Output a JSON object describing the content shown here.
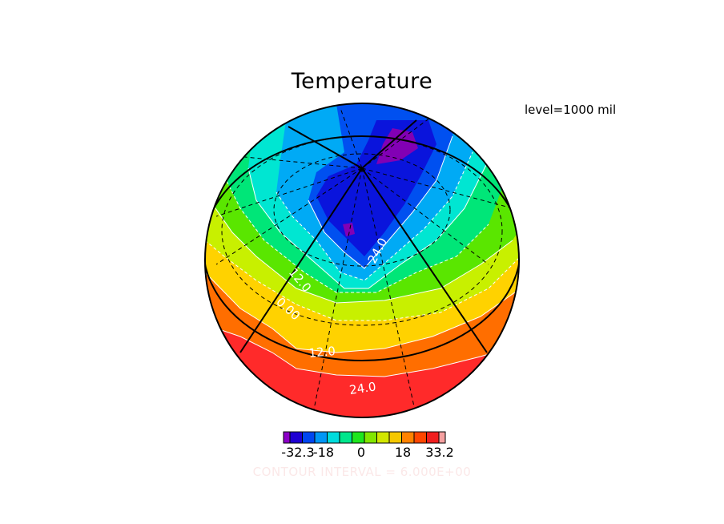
{
  "title": "Temperature",
  "level_label": "level=1000 mil",
  "contour_interval_label": "CONTOUR INTERVAL = 6.000E+00",
  "contour_labels": [
    "24.0",
    "12.0",
    "0.00",
    "12.0",
    "24.0"
  ],
  "colorbar": {
    "colors": [
      "#8c00c8",
      "#1e00d2",
      "#0046f0",
      "#0096f5",
      "#00dcdc",
      "#00e68c",
      "#1ee61e",
      "#82e600",
      "#d2e600",
      "#f5c800",
      "#ff8200",
      "#ff4600",
      "#f01e1e",
      "#f5a0a0"
    ],
    "tick_labels": [
      "-32.3",
      "-18",
      "0",
      "18",
      "33.2"
    ]
  },
  "colors": {
    "coast_band": "#ff2a2a",
    "orange_band": "#ff6e00",
    "yellow_band": "#ffd200",
    "lime_band": "#c8f000",
    "green_band": "#5ae600",
    "mint_band": "#00e678",
    "cyan_band": "#00e6d2",
    "sky_band": "#00aaf5",
    "blue_band": "#0050f0",
    "deep_band": "#0a14dc",
    "purple_band": "#8200b4"
  }
}
